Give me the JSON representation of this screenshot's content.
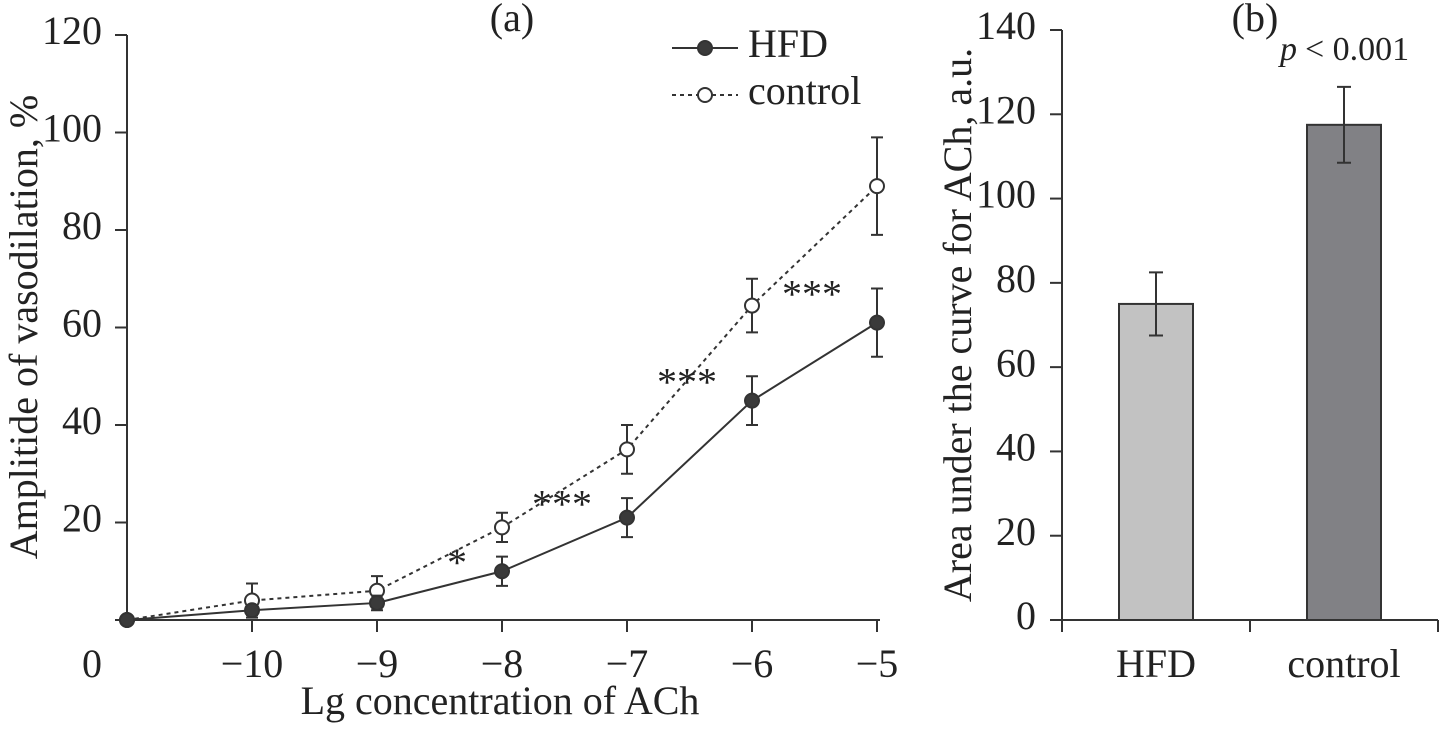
{
  "chart_data": [
    {
      "type": "line",
      "title": "(a)",
      "x_label": "Lg concentration of ACh",
      "y_label": "Amplitide of vasodilation, %",
      "categories": [
        null,
        "−10",
        "−9",
        "−8",
        "−7",
        "−6",
        "−5"
      ],
      "series": [
        {
          "name": "HFD",
          "color": "#333333",
          "marker_fill": "#3a3a3a",
          "dashed": false,
          "values": [
            0,
            2,
            3.5,
            10,
            21,
            45,
            61
          ],
          "errors": [
            0,
            1,
            1.5,
            3,
            4,
            5,
            7
          ]
        },
        {
          "name": "control",
          "color": "#333333",
          "marker_fill": "#ffffff",
          "dashed": true,
          "values": [
            0,
            4,
            6,
            19,
            35,
            64.5,
            89
          ],
          "errors": [
            0,
            3.5,
            3,
            3,
            5,
            5.5,
            10
          ]
        }
      ],
      "annotations": [
        null,
        null,
        null,
        "*",
        "***",
        "***",
        "***"
      ],
      "ylim": [
        0,
        120
      ],
      "yticks": [
        0,
        20,
        40,
        60,
        80,
        100,
        120
      ]
    },
    {
      "type": "bar",
      "title": "(b)",
      "y_label": "Area under the curve for ACh, a.u.",
      "annotation_var": "p",
      "annotation": "< 0.001",
      "categories": [
        "HFD",
        "control"
      ],
      "values": [
        75,
        117.5
      ],
      "errors": [
        7.5,
        9
      ],
      "colors": [
        "#c2c2c2",
        "#818185"
      ],
      "ylim": [
        0,
        140
      ],
      "yticks": [
        0,
        20,
        40,
        60,
        80,
        100,
        120,
        140
      ]
    }
  ]
}
